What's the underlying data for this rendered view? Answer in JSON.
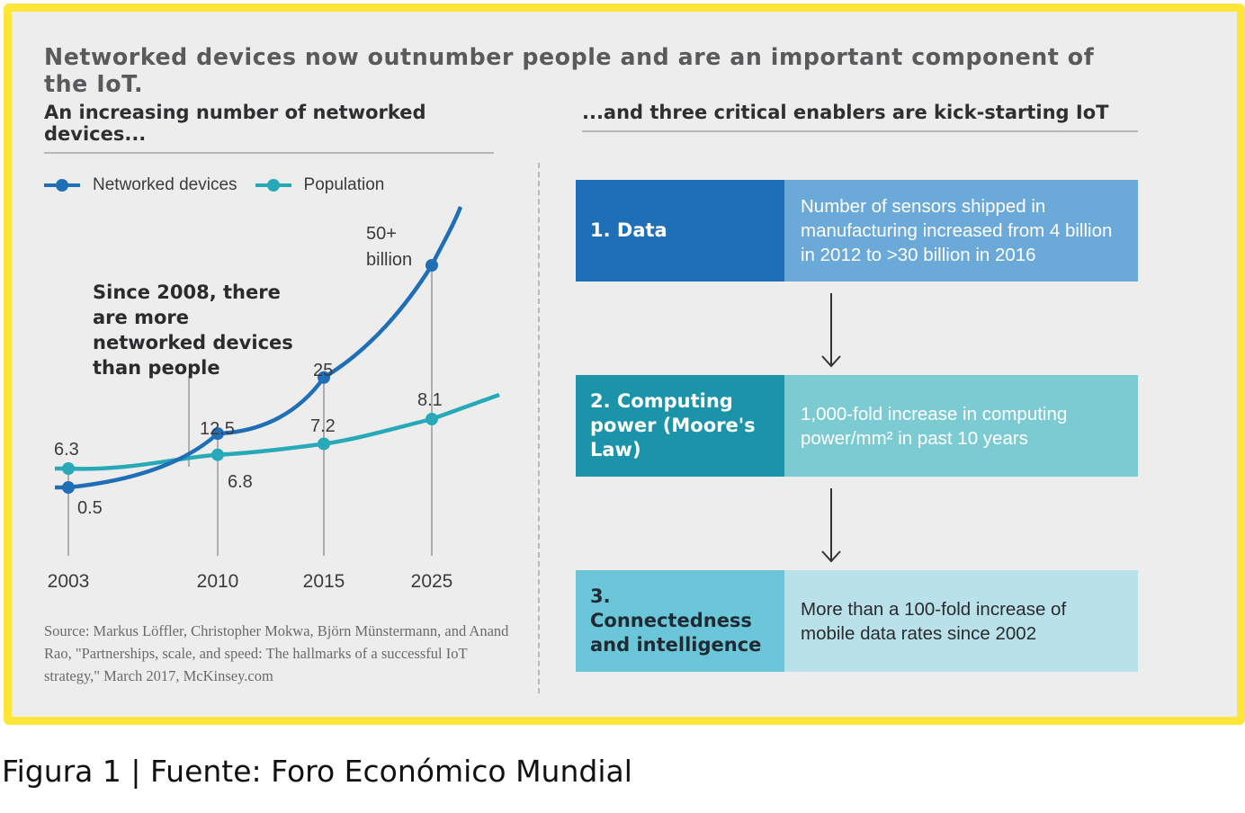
{
  "header": {
    "title": "Networked devices now outnumber people and are an important component of the IoT.",
    "left_subtitle": "An increasing number of networked devices...",
    "right_subtitle": "...and three critical enablers are kick-starting IoT"
  },
  "chart_data": {
    "type": "line",
    "x": [
      2003,
      2010,
      2015,
      2025
    ],
    "categories": [
      "2003",
      "2010",
      "2015",
      "2025"
    ],
    "series": [
      {
        "name": "Networked devices",
        "color": "#1f6fb6",
        "values": [
          0.5,
          12.5,
          25,
          50
        ],
        "labels": [
          "0.5",
          "12.5",
          "25",
          "50+\nbillion"
        ]
      },
      {
        "name": "Population",
        "color": "#27a9b8",
        "values": [
          6.3,
          6.8,
          7.2,
          8.1
        ],
        "labels": [
          "6.3",
          "6.8",
          "7.2",
          "8.1"
        ]
      }
    ],
    "annotation": "Since 2008, there are more networked devices than people",
    "xlabel": "",
    "ylabel": "",
    "grid": false,
    "legend": "top-left"
  },
  "source_note": "Source: Markus Löffler, Christopher Mokwa, Björn Münstermann, and Anand Rao, \"Partnerships, scale, and speed: The hallmarks of a successful IoT strategy,\" March 2017, McKinsey.com",
  "enablers": [
    {
      "label": "1. Data",
      "description": "Number of sensors shipped in manufacturing increased from 4 billion in 2012 to >30 billion in 2016"
    },
    {
      "label": "2. Computing power (Moore's Law)",
      "description": "1,000-fold increase in computing power/mm² in past 10 years"
    },
    {
      "label": "3. Connectedness and intelligence",
      "description": "More than a 100-fold increase of mobile data rates since 2002"
    }
  ],
  "caption": "Figura 1 | Fuente: Foro Económico Mundial"
}
